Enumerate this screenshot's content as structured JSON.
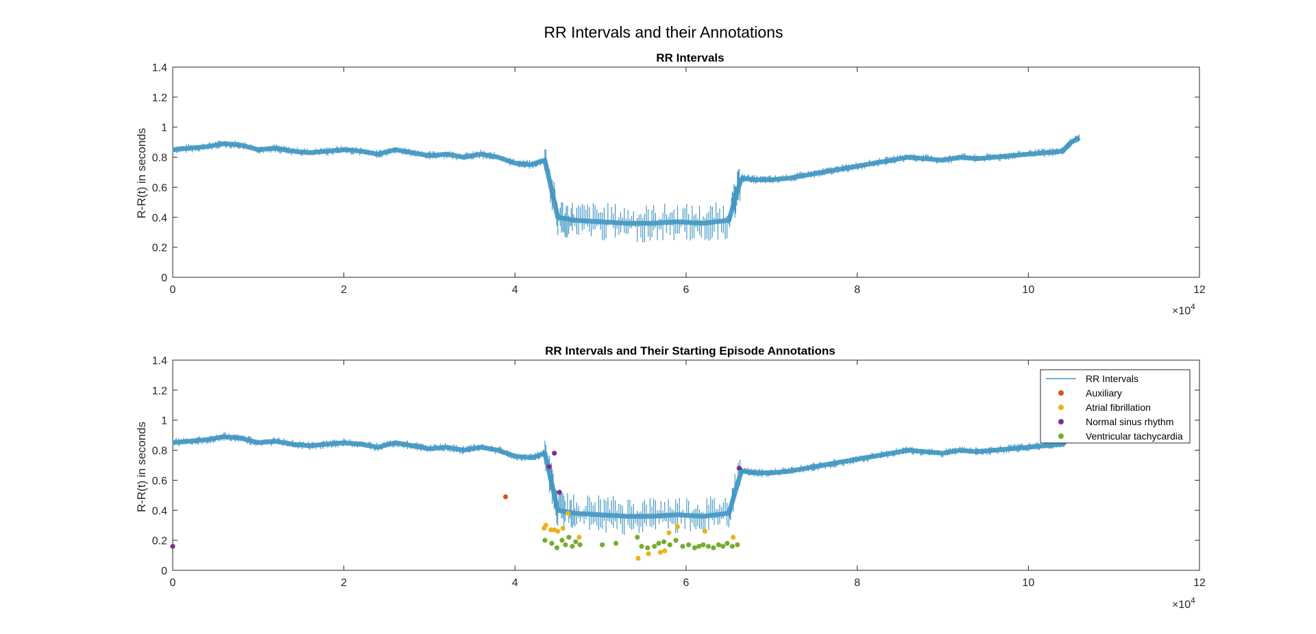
{
  "figure": {
    "title": "RR Intervals and their Annotations"
  },
  "chart_data": [
    {
      "type": "line",
      "title": "RR Intervals",
      "xlabel": "",
      "ylabel": "R-R(t) in seconds",
      "xlim": [
        0,
        120000
      ],
      "ylim": [
        0,
        1.4
      ],
      "x_exponent_label": "×10",
      "x_exponent_power": "4",
      "x_tick_labels": [
        "0",
        "2",
        "4",
        "6",
        "8",
        "10",
        "12"
      ],
      "y_tick_labels": [
        "0",
        "0.2",
        "0.4",
        "0.6",
        "0.8",
        "1",
        "1.2",
        "1.4"
      ],
      "series": [
        {
          "name": "RR Intervals",
          "color": "#4397c3",
          "x": [
            0,
            2000,
            4000,
            6000,
            8000,
            10000,
            12000,
            14000,
            16000,
            18000,
            20000,
            22000,
            24000,
            26000,
            28000,
            30000,
            32000,
            34000,
            36000,
            38000,
            40000,
            42000,
            43500,
            45000,
            47000,
            50000,
            53000,
            56000,
            59000,
            62000,
            65000,
            66400,
            66600,
            68000,
            70000,
            72000,
            74000,
            76000,
            78000,
            80000,
            82000,
            84000,
            86000,
            88000,
            90000,
            92000,
            94000,
            96000,
            98000,
            100000,
            102000,
            104000,
            105000,
            106000
          ],
          "y": [
            0.85,
            0.86,
            0.87,
            0.89,
            0.88,
            0.85,
            0.86,
            0.84,
            0.83,
            0.84,
            0.85,
            0.84,
            0.82,
            0.85,
            0.83,
            0.81,
            0.82,
            0.8,
            0.82,
            0.8,
            0.76,
            0.75,
            0.78,
            0.4,
            0.38,
            0.37,
            0.36,
            0.36,
            0.37,
            0.36,
            0.38,
            0.65,
            0.66,
            0.65,
            0.65,
            0.66,
            0.68,
            0.7,
            0.72,
            0.74,
            0.76,
            0.78,
            0.8,
            0.79,
            0.78,
            0.8,
            0.79,
            0.8,
            0.81,
            0.82,
            0.83,
            0.84,
            0.9,
            0.93
          ]
        }
      ]
    },
    {
      "type": "scatter",
      "title": "RR Intervals and Their Starting Episode Annotations",
      "xlabel": "",
      "ylabel": "R-R(t) in seconds",
      "xlim": [
        0,
        120000
      ],
      "ylim": [
        0,
        1.4
      ],
      "x_exponent_label": "×10",
      "x_exponent_power": "4",
      "x_tick_labels": [
        "0",
        "2",
        "4",
        "6",
        "8",
        "10",
        "12"
      ],
      "y_tick_labels": [
        "0",
        "0.2",
        "0.4",
        "0.6",
        "0.8",
        "1",
        "1.2",
        "1.4"
      ],
      "legend_position": "top-right",
      "series": [
        {
          "name": "RR Intervals",
          "color": "#4397c3",
          "kind": "line",
          "x": [
            0,
            2000,
            4000,
            6000,
            8000,
            10000,
            12000,
            14000,
            16000,
            18000,
            20000,
            22000,
            24000,
            26000,
            28000,
            30000,
            32000,
            34000,
            36000,
            38000,
            40000,
            42000,
            43500,
            45000,
            47000,
            50000,
            53000,
            56000,
            59000,
            62000,
            65000,
            66400,
            66600,
            68000,
            70000,
            72000,
            74000,
            76000,
            78000,
            80000,
            82000,
            84000,
            86000,
            88000,
            90000,
            92000,
            94000,
            96000,
            98000,
            100000,
            102000,
            104000,
            105000,
            106000
          ],
          "y": [
            0.85,
            0.86,
            0.87,
            0.89,
            0.88,
            0.85,
            0.86,
            0.84,
            0.83,
            0.84,
            0.85,
            0.84,
            0.82,
            0.85,
            0.83,
            0.81,
            0.82,
            0.8,
            0.82,
            0.8,
            0.76,
            0.75,
            0.78,
            0.4,
            0.38,
            0.37,
            0.36,
            0.36,
            0.37,
            0.36,
            0.38,
            0.65,
            0.66,
            0.65,
            0.65,
            0.66,
            0.68,
            0.7,
            0.72,
            0.74,
            0.76,
            0.78,
            0.8,
            0.79,
            0.78,
            0.8,
            0.79,
            0.8,
            0.81,
            0.82,
            0.83,
            0.84,
            0.9,
            0.93
          ]
        },
        {
          "name": "Auxiliary",
          "color": "#d95319",
          "kind": "points",
          "x": [
            38900
          ],
          "y": [
            0.49
          ]
        },
        {
          "name": "Atrial fibrillation",
          "color": "#edb120",
          "kind": "points",
          "x": [
            43400,
            43600,
            44200,
            44600,
            45000,
            45600,
            46200,
            47500,
            54400,
            55600,
            57000,
            57500,
            58000,
            59000,
            61000,
            62200,
            65500
          ],
          "y": [
            0.28,
            0.3,
            0.27,
            0.27,
            0.26,
            0.28,
            0.38,
            0.22,
            0.08,
            0.11,
            0.12,
            0.13,
            0.25,
            0.29,
            0.15,
            0.26,
            0.22
          ]
        },
        {
          "name": "Normal sinus rhythm",
          "color": "#7e2f8e",
          "kind": "points",
          "x": [
            0,
            44000,
            44600,
            45200,
            66200
          ],
          "y": [
            0.16,
            0.69,
            0.78,
            0.52,
            0.68
          ]
        },
        {
          "name": "Ventricular tachycardia",
          "color": "#77ac30",
          "kind": "points",
          "x": [
            43500,
            44300,
            44900,
            45500,
            45900,
            46300,
            46700,
            47100,
            47600,
            50200,
            51800,
            54300,
            54800,
            55500,
            56300,
            56800,
            57400,
            58100,
            58800,
            59600,
            60300,
            61000,
            61500,
            62000,
            62600,
            63200,
            63800,
            64300,
            64800,
            65400,
            66000
          ],
          "y": [
            0.2,
            0.18,
            0.15,
            0.2,
            0.17,
            0.22,
            0.16,
            0.19,
            0.17,
            0.17,
            0.18,
            0.22,
            0.16,
            0.15,
            0.16,
            0.18,
            0.19,
            0.17,
            0.2,
            0.16,
            0.17,
            0.15,
            0.16,
            0.17,
            0.16,
            0.15,
            0.17,
            0.16,
            0.18,
            0.16,
            0.17
          ]
        }
      ]
    }
  ]
}
